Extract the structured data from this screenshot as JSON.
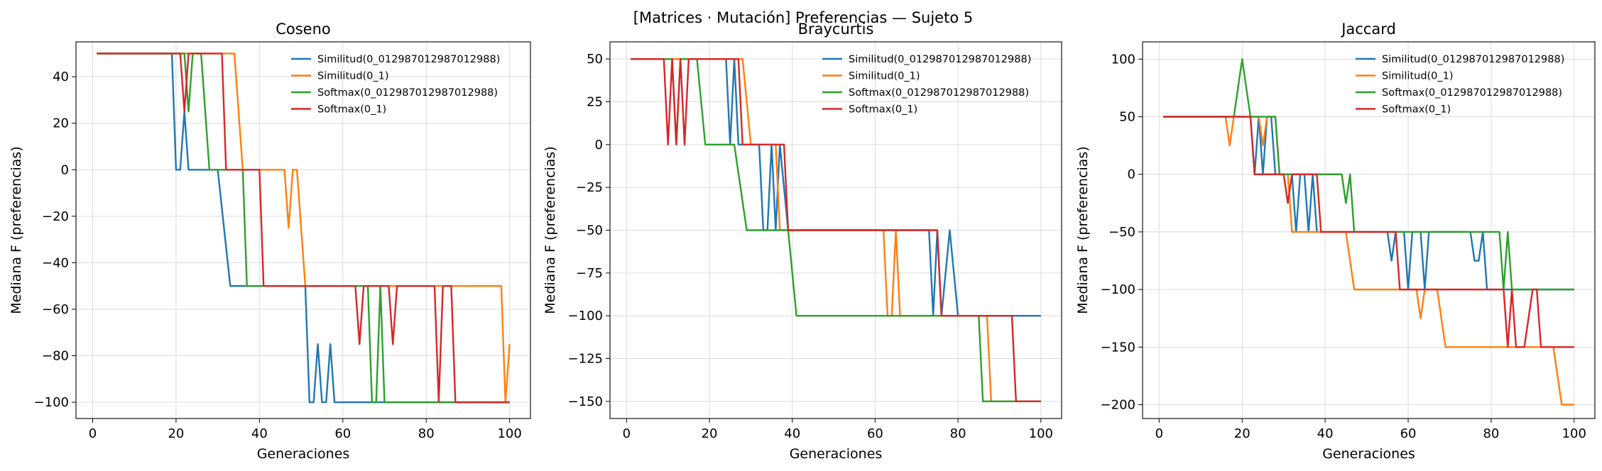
{
  "figure": {
    "suptitle": "[Matrices · Mutación] Preferencias — Sujeto 5"
  },
  "chart_data": [
    {
      "type": "line",
      "title": "Coseno",
      "xlabel": "Generaciones",
      "ylabel": "Mediana F (preferencias)",
      "xlim": [
        -4,
        105
      ],
      "ylim": [
        -107,
        55
      ],
      "xticks": [
        0,
        20,
        40,
        60,
        80,
        100
      ],
      "yticks": [
        40,
        20,
        0,
        -20,
        -40,
        -60,
        -80,
        -100
      ],
      "grid": true,
      "legend_position": "top-right",
      "series": [
        {
          "name": "Similitud(0_012987012987012988)",
          "color": "#1f77b4",
          "points": [
            [
              1,
              50
            ],
            [
              19,
              50
            ],
            [
              20,
              0
            ],
            [
              21,
              0
            ],
            [
              22,
              25
            ],
            [
              23,
              0
            ],
            [
              30,
              0
            ],
            [
              33,
              -50
            ],
            [
              51,
              -50
            ],
            [
              52,
              -100
            ],
            [
              53,
              -100
            ],
            [
              54,
              -75
            ],
            [
              55,
              -100
            ],
            [
              56,
              -100
            ],
            [
              57,
              -75
            ],
            [
              58,
              -100
            ],
            [
              100,
              -100
            ]
          ]
        },
        {
          "name": "Similitud(0_1)",
          "color": "#ff7f0e",
          "points": [
            [
              1,
              50
            ],
            [
              34,
              50
            ],
            [
              36,
              0
            ],
            [
              46,
              0
            ],
            [
              47,
              -25
            ],
            [
              48,
              0
            ],
            [
              49,
              0
            ],
            [
              51,
              -50
            ],
            [
              98,
              -50
            ],
            [
              99,
              -100
            ],
            [
              100,
              -75
            ]
          ]
        },
        {
          "name": "Softmax(0_012987012987012988)",
          "color": "#2ca02c",
          "points": [
            [
              1,
              50
            ],
            [
              22,
              50
            ],
            [
              23,
              25
            ],
            [
              24,
              50
            ],
            [
              26,
              50
            ],
            [
              28,
              0
            ],
            [
              36,
              0
            ],
            [
              37,
              -50
            ],
            [
              66,
              -50
            ],
            [
              67,
              -100
            ],
            [
              68,
              -100
            ],
            [
              69,
              -50
            ],
            [
              70,
              -100
            ],
            [
              100,
              -100
            ]
          ]
        },
        {
          "name": "Softmax(0_1)",
          "color": "#d62728",
          "points": [
            [
              1,
              50
            ],
            [
              21,
              50
            ],
            [
              22,
              25
            ],
            [
              23,
              50
            ],
            [
              31,
              50
            ],
            [
              32,
              0
            ],
            [
              40,
              0
            ],
            [
              41,
              -50
            ],
            [
              63,
              -50
            ],
            [
              64,
              -75
            ],
            [
              65,
              -50
            ],
            [
              71,
              -50
            ],
            [
              72,
              -75
            ],
            [
              73,
              -50
            ],
            [
              82,
              -50
            ],
            [
              83,
              -100
            ],
            [
              84,
              -50
            ],
            [
              86,
              -50
            ],
            [
              87,
              -100
            ],
            [
              100,
              -100
            ]
          ]
        }
      ]
    },
    {
      "type": "line",
      "title": "Braycurtis",
      "xlabel": "Generaciones",
      "ylabel": "Mediana F (preferencias)",
      "xlim": [
        -4,
        105
      ],
      "ylim": [
        -160,
        60
      ],
      "xticks": [
        0,
        20,
        40,
        60,
        80,
        100
      ],
      "yticks": [
        50,
        25,
        0,
        -25,
        -50,
        -75,
        -100,
        -125,
        -150
      ],
      "grid": true,
      "legend_position": "top-right",
      "series": [
        {
          "name": "Similitud(0_012987012987012988)",
          "color": "#1f77b4",
          "points": [
            [
              1,
              50
            ],
            [
              24,
              50
            ],
            [
              25,
              0
            ],
            [
              26,
              50
            ],
            [
              27,
              0
            ],
            [
              32,
              0
            ],
            [
              33,
              -50
            ],
            [
              34,
              -50
            ],
            [
              35,
              0
            ],
            [
              36,
              -50
            ],
            [
              37,
              0
            ],
            [
              38,
              -25
            ],
            [
              39,
              -50
            ],
            [
              73,
              -50
            ],
            [
              74,
              -100
            ],
            [
              75,
              -50
            ],
            [
              76,
              -100
            ],
            [
              77,
              -75
            ],
            [
              78,
              -50
            ],
            [
              79,
              -75
            ],
            [
              80,
              -100
            ],
            [
              100,
              -100
            ]
          ]
        },
        {
          "name": "Similitud(0_1)",
          "color": "#ff7f0e",
          "points": [
            [
              1,
              50
            ],
            [
              28,
              50
            ],
            [
              30,
              0
            ],
            [
              36,
              0
            ],
            [
              37,
              -50
            ],
            [
              62,
              -50
            ],
            [
              63,
              -100
            ],
            [
              64,
              -100
            ],
            [
              65,
              -50
            ],
            [
              66,
              -100
            ],
            [
              87,
              -100
            ],
            [
              88,
              -150
            ],
            [
              100,
              -150
            ]
          ]
        },
        {
          "name": "Softmax(0_012987012987012988)",
          "color": "#2ca02c",
          "points": [
            [
              1,
              50
            ],
            [
              11,
              50
            ],
            [
              12,
              0
            ],
            [
              13,
              50
            ],
            [
              17,
              50
            ],
            [
              19,
              0
            ],
            [
              26,
              0
            ],
            [
              29,
              -50
            ],
            [
              39,
              -50
            ],
            [
              41,
              -100
            ],
            [
              85,
              -100
            ],
            [
              86,
              -150
            ],
            [
              100,
              -150
            ]
          ]
        },
        {
          "name": "Softmax(0_1)",
          "color": "#d62728",
          "points": [
            [
              1,
              50
            ],
            [
              9,
              50
            ],
            [
              10,
              0
            ],
            [
              11,
              50
            ],
            [
              12,
              0
            ],
            [
              13,
              50
            ],
            [
              14,
              0
            ],
            [
              15,
              50
            ],
            [
              27,
              50
            ],
            [
              28,
              0
            ],
            [
              38,
              0
            ],
            [
              39,
              -50
            ],
            [
              75,
              -50
            ],
            [
              76,
              -100
            ],
            [
              93,
              -100
            ],
            [
              94,
              -150
            ],
            [
              100,
              -150
            ]
          ]
        }
      ]
    },
    {
      "type": "line",
      "title": "Jaccard",
      "xlabel": "Generaciones",
      "ylabel": "Mediana F (preferencias)",
      "xlim": [
        -4,
        105
      ],
      "ylim": [
        -212,
        115
      ],
      "xticks": [
        0,
        20,
        40,
        60,
        80,
        100
      ],
      "yticks": [
        100,
        50,
        0,
        -50,
        -100,
        -150,
        -200
      ],
      "grid": true,
      "legend_position": "top-right",
      "series": [
        {
          "name": "Similitud(0_012987012987012988)",
          "color": "#1f77b4",
          "points": [
            [
              1,
              50
            ],
            [
              22,
              50
            ],
            [
              23,
              0
            ],
            [
              24,
              50
            ],
            [
              25,
              0
            ],
            [
              26,
              50
            ],
            [
              27,
              50
            ],
            [
              28,
              0
            ],
            [
              32,
              0
            ],
            [
              33,
              -50
            ],
            [
              34,
              0
            ],
            [
              35,
              0
            ],
            [
              36,
              -50
            ],
            [
              37,
              0
            ],
            [
              38,
              -50
            ],
            [
              55,
              -50
            ],
            [
              56,
              -75
            ],
            [
              57,
              -50
            ],
            [
              59,
              -50
            ],
            [
              60,
              -100
            ],
            [
              61,
              -50
            ],
            [
              63,
              -50
            ],
            [
              64,
              -100
            ],
            [
              65,
              -50
            ],
            [
              75,
              -50
            ],
            [
              76,
              -75
            ],
            [
              77,
              -75
            ],
            [
              78,
              -50
            ],
            [
              79,
              -100
            ],
            [
              100,
              -100
            ]
          ]
        },
        {
          "name": "Similitud(0_1)",
          "color": "#ff7f0e",
          "points": [
            [
              1,
              50
            ],
            [
              16,
              50
            ],
            [
              17,
              25
            ],
            [
              18,
              50
            ],
            [
              24,
              50
            ],
            [
              25,
              25
            ],
            [
              26,
              50
            ],
            [
              28,
              50
            ],
            [
              29,
              0
            ],
            [
              31,
              0
            ],
            [
              32,
              -50
            ],
            [
              45,
              -50
            ],
            [
              47,
              -100
            ],
            [
              62,
              -100
            ],
            [
              63,
              -125
            ],
            [
              64,
              -100
            ],
            [
              67,
              -100
            ],
            [
              69,
              -150
            ],
            [
              95,
              -150
            ],
            [
              97,
              -200
            ],
            [
              100,
              -200
            ]
          ]
        },
        {
          "name": "Softmax(0_012987012987012988)",
          "color": "#2ca02c",
          "points": [
            [
              1,
              50
            ],
            [
              18,
              50
            ],
            [
              20,
              100
            ],
            [
              22,
              50
            ],
            [
              27,
              50
            ],
            [
              28,
              50
            ],
            [
              29,
              0
            ],
            [
              44,
              0
            ],
            [
              45,
              -25
            ],
            [
              46,
              0
            ],
            [
              47,
              -50
            ],
            [
              82,
              -50
            ],
            [
              83,
              -100
            ],
            [
              84,
              -50
            ],
            [
              85,
              -100
            ],
            [
              100,
              -100
            ]
          ]
        },
        {
          "name": "Softmax(0_1)",
          "color": "#d62728",
          "points": [
            [
              1,
              50
            ],
            [
              22,
              50
            ],
            [
              23,
              0
            ],
            [
              30,
              0
            ],
            [
              31,
              -25
            ],
            [
              32,
              0
            ],
            [
              38,
              0
            ],
            [
              39,
              -50
            ],
            [
              57,
              -50
            ],
            [
              58,
              -100
            ],
            [
              83,
              -100
            ],
            [
              84,
              -150
            ],
            [
              85,
              -100
            ],
            [
              86,
              -150
            ],
            [
              88,
              -150
            ],
            [
              89,
              -125
            ],
            [
              90,
              -100
            ],
            [
              91,
              -100
            ],
            [
              92,
              -150
            ],
            [
              100,
              -150
            ]
          ]
        }
      ]
    }
  ]
}
